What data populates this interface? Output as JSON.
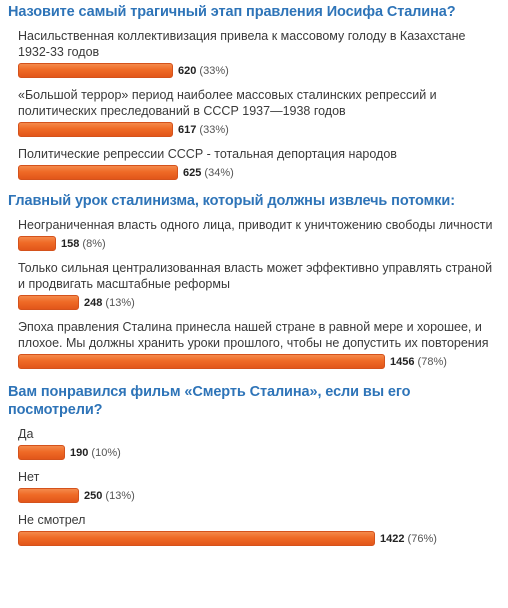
{
  "polls": [
    {
      "question": "Назовите самый трагичный этап правления Иосифа Сталина?",
      "answers": [
        {
          "text": "Насильственная коллективизация привела к массовому голоду в Казахстане 1932-33 годов",
          "count": "620",
          "percent_label": "(33%)",
          "percent": 33
        },
        {
          "text": "«Большой террор» период наиболее массовых сталинских репрессий и политических преследований в СССР 1937—1938 годов",
          "count": "617",
          "percent_label": "(33%)",
          "percent": 33
        },
        {
          "text": "Политические репрессии СССР - тотальная депортация народов",
          "count": "625",
          "percent_label": "(34%)",
          "percent": 34
        }
      ]
    },
    {
      "question": "Главный урок сталинизма, который должны извлечь потомки:",
      "answers": [
        {
          "text": "Неограниченная власть одного лица, приводит к уничтожению свободы личности",
          "count": "158",
          "percent_label": "(8%)",
          "percent": 8
        },
        {
          "text": "Только сильная централизованная власть может эффективно управлять страной и продвигать масштабные реформы",
          "count": "248",
          "percent_label": "(13%)",
          "percent": 13
        },
        {
          "text": "Эпоха правления Сталина принесла нашей стране в равной мере и хорошее, и плохое. Мы должны хранить уроки прошлого, чтобы не допустить их повторения",
          "count": "1456",
          "percent_label": "(78%)",
          "percent": 78
        }
      ]
    },
    {
      "question": "Вам понравился фильм «Смерть Сталина», если вы его посмотрели?",
      "answers": [
        {
          "text": "Да",
          "count": "190",
          "percent_label": "(10%)",
          "percent": 10
        },
        {
          "text": "Нет",
          "count": "250",
          "percent_label": "(13%)",
          "percent": 13
        },
        {
          "text": "Не смотрел",
          "count": "1422",
          "percent_label": "(76%)",
          "percent": 76
        }
      ]
    }
  ],
  "colors": {
    "question": "#2e74b8",
    "bar": "#ef6a26",
    "bar_border": "#d4521c",
    "text": "#3a3a3a"
  }
}
